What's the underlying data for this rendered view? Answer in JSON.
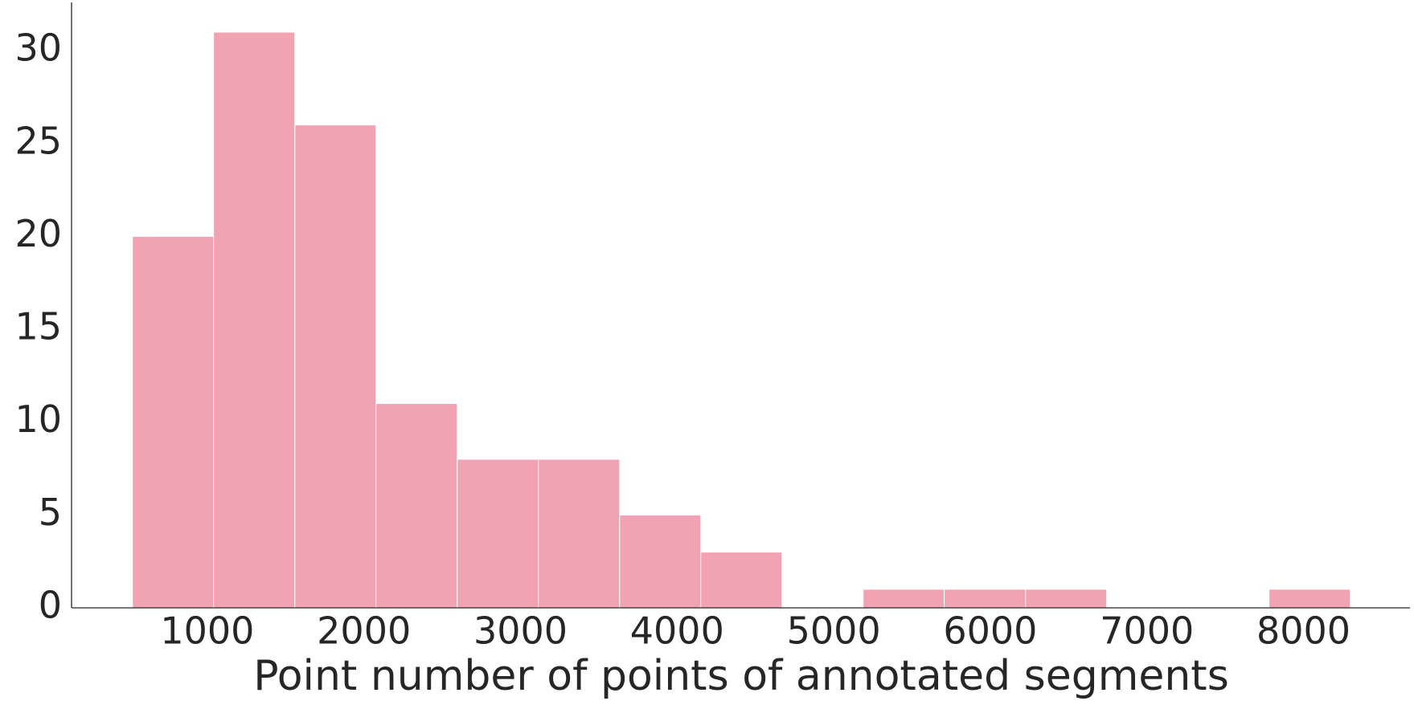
{
  "chart_data": {
    "type": "histogram",
    "x_label": "Point number of points of annotated segments",
    "bins": [
      522,
      1040,
      1559,
      2077,
      2596,
      3114,
      3633,
      4151,
      4670,
      5188,
      5706,
      6225,
      6743,
      7262,
      7780,
      8298
    ],
    "counts": [
      20,
      31,
      26,
      11,
      8,
      8,
      5,
      3,
      0,
      1,
      1,
      1,
      0,
      0,
      1
    ],
    "color": "#f1a2b3",
    "xlim": [
      133,
      8680
    ],
    "xticks": [
      1000,
      2000,
      3000,
      4000,
      5000,
      6000,
      7000,
      8000
    ],
    "ylim": [
      0,
      32.6
    ],
    "yticks": [
      0,
      5,
      10,
      15,
      20,
      25,
      30
    ],
    "grid": false
  }
}
